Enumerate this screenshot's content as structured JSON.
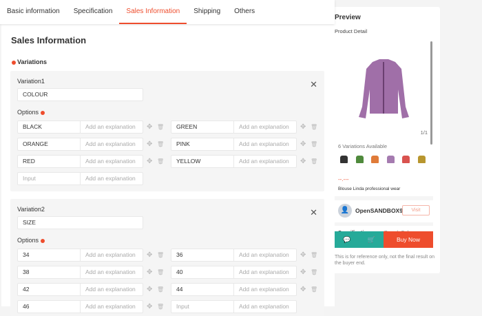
{
  "tabs": [
    "Basic information",
    "Specification",
    "Sales Information",
    "Shipping",
    "Others"
  ],
  "active_tab": "Sales Information",
  "section_title": "Sales Information",
  "variations_label": "Variations",
  "options_label": "Options",
  "explanation_placeholder": "Add an explanation",
  "input_placeholder": "Input",
  "variation1": {
    "label": "Variation1",
    "name": "COLOUR",
    "options": [
      "BLACK",
      "GREEN",
      "ORANGE",
      "PINK",
      "RED",
      "YELLOW"
    ]
  },
  "variation2": {
    "label": "Variation2",
    "name": "SIZE",
    "options": [
      "34",
      "36",
      "38",
      "40",
      "42",
      "44",
      "46"
    ]
  },
  "preview": {
    "title": "Preview",
    "subtitle": "Product Detail",
    "pager": "1/1",
    "variations_available": "6 Variations Available",
    "swatch_colors": [
      "#333333",
      "#4f8a3c",
      "#e07b39",
      "#a57bb0",
      "#d9534f",
      "#b8962e"
    ],
    "price": "--.---",
    "product_name": "Blouse Linda professional wear",
    "shop_name": "OpenSANDBOX9",
    "visit": "Visit",
    "spec_label": "Specification",
    "spec_value": "Brand, Colou",
    "buy_now": "Buy Now",
    "note": "This is for reference only, not the final result on the buyer end."
  },
  "colors": {
    "accent": "#ee4d2d",
    "teal": "#26aa99"
  }
}
